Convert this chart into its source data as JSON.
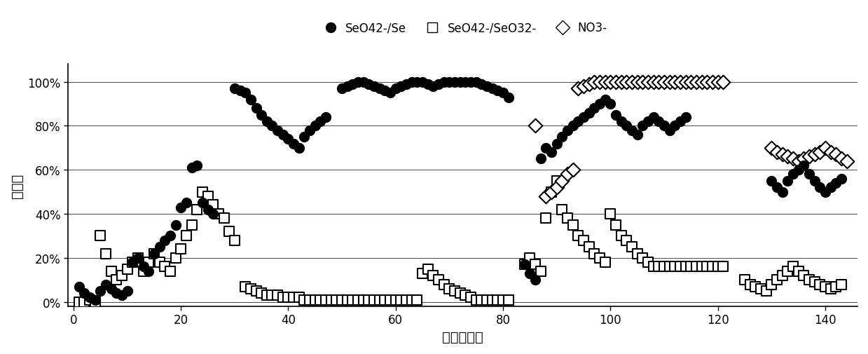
{
  "xlabel": "时间（天）",
  "ylabel": "去除率",
  "xlim": [
    -1,
    146
  ],
  "ylim": [
    -0.02,
    1.08
  ],
  "yticks": [
    0.0,
    0.2,
    0.4,
    0.6,
    0.8,
    1.0
  ],
  "ytick_labels": [
    "0%",
    "20%",
    "40%",
    "60%",
    "80%",
    "100%"
  ],
  "xticks": [
    0,
    20,
    40,
    60,
    80,
    100,
    120,
    140
  ],
  "background_color": "#ffffff",
  "seO42_Se": [
    [
      1,
      0.07
    ],
    [
      2,
      0.04
    ],
    [
      3,
      0.02
    ],
    [
      4,
      0.01
    ],
    [
      5,
      0.05
    ],
    [
      6,
      0.08
    ],
    [
      7,
      0.06
    ],
    [
      8,
      0.04
    ],
    [
      9,
      0.03
    ],
    [
      10,
      0.05
    ],
    [
      11,
      0.18
    ],
    [
      12,
      0.2
    ],
    [
      13,
      0.16
    ],
    [
      14,
      0.14
    ],
    [
      15,
      0.22
    ],
    [
      16,
      0.25
    ],
    [
      17,
      0.28
    ],
    [
      18,
      0.3
    ],
    [
      19,
      0.35
    ],
    [
      20,
      0.43
    ],
    [
      21,
      0.45
    ],
    [
      22,
      0.61
    ],
    [
      23,
      0.62
    ],
    [
      24,
      0.45
    ],
    [
      25,
      0.42
    ],
    [
      26,
      0.4
    ],
    [
      30,
      0.97
    ],
    [
      31,
      0.96
    ],
    [
      32,
      0.95
    ],
    [
      33,
      0.92
    ],
    [
      34,
      0.88
    ],
    [
      35,
      0.85
    ],
    [
      36,
      0.82
    ],
    [
      37,
      0.8
    ],
    [
      38,
      0.78
    ],
    [
      39,
      0.76
    ],
    [
      40,
      0.74
    ],
    [
      41,
      0.72
    ],
    [
      42,
      0.7
    ],
    [
      43,
      0.75
    ],
    [
      44,
      0.78
    ],
    [
      45,
      0.8
    ],
    [
      46,
      0.82
    ],
    [
      47,
      0.84
    ],
    [
      50,
      0.97
    ],
    [
      51,
      0.98
    ],
    [
      52,
      0.99
    ],
    [
      53,
      1.0
    ],
    [
      54,
      1.0
    ],
    [
      55,
      0.99
    ],
    [
      56,
      0.98
    ],
    [
      57,
      0.97
    ],
    [
      58,
      0.96
    ],
    [
      59,
      0.95
    ],
    [
      60,
      0.97
    ],
    [
      61,
      0.98
    ],
    [
      62,
      0.99
    ],
    [
      63,
      1.0
    ],
    [
      64,
      1.0
    ],
    [
      65,
      1.0
    ],
    [
      66,
      0.99
    ],
    [
      67,
      0.98
    ],
    [
      68,
      0.99
    ],
    [
      69,
      1.0
    ],
    [
      70,
      1.0
    ],
    [
      71,
      1.0
    ],
    [
      72,
      1.0
    ],
    [
      73,
      1.0
    ],
    [
      74,
      1.0
    ],
    [
      75,
      1.0
    ],
    [
      76,
      0.99
    ],
    [
      77,
      0.98
    ],
    [
      78,
      0.97
    ],
    [
      79,
      0.96
    ],
    [
      80,
      0.95
    ],
    [
      81,
      0.93
    ],
    [
      84,
      0.17
    ],
    [
      85,
      0.13
    ],
    [
      86,
      0.1
    ],
    [
      87,
      0.65
    ],
    [
      88,
      0.7
    ],
    [
      89,
      0.68
    ],
    [
      90,
      0.72
    ],
    [
      91,
      0.75
    ],
    [
      92,
      0.78
    ],
    [
      93,
      0.8
    ],
    [
      94,
      0.82
    ],
    [
      95,
      0.84
    ],
    [
      96,
      0.86
    ],
    [
      97,
      0.88
    ],
    [
      98,
      0.9
    ],
    [
      99,
      0.92
    ],
    [
      100,
      0.9
    ],
    [
      101,
      0.85
    ],
    [
      102,
      0.82
    ],
    [
      103,
      0.8
    ],
    [
      104,
      0.78
    ],
    [
      105,
      0.76
    ],
    [
      106,
      0.8
    ],
    [
      107,
      0.82
    ],
    [
      108,
      0.84
    ],
    [
      109,
      0.82
    ],
    [
      110,
      0.8
    ],
    [
      111,
      0.78
    ],
    [
      112,
      0.8
    ],
    [
      113,
      0.82
    ],
    [
      114,
      0.84
    ],
    [
      130,
      0.55
    ],
    [
      131,
      0.52
    ],
    [
      132,
      0.5
    ],
    [
      133,
      0.55
    ],
    [
      134,
      0.58
    ],
    [
      135,
      0.6
    ],
    [
      136,
      0.62
    ],
    [
      137,
      0.58
    ],
    [
      138,
      0.55
    ],
    [
      139,
      0.52
    ],
    [
      140,
      0.5
    ],
    [
      141,
      0.52
    ],
    [
      142,
      0.54
    ],
    [
      143,
      0.56
    ]
  ],
  "seO42_SeO32": [
    [
      1,
      0.0
    ],
    [
      2,
      0.0
    ],
    [
      3,
      0.01
    ],
    [
      4,
      0.0
    ],
    [
      5,
      0.3
    ],
    [
      6,
      0.22
    ],
    [
      7,
      0.14
    ],
    [
      8,
      0.1
    ],
    [
      9,
      0.12
    ],
    [
      10,
      0.15
    ],
    [
      11,
      0.18
    ],
    [
      12,
      0.2
    ],
    [
      13,
      0.14
    ],
    [
      14,
      0.18
    ],
    [
      15,
      0.22
    ],
    [
      16,
      0.18
    ],
    [
      17,
      0.16
    ],
    [
      18,
      0.14
    ],
    [
      19,
      0.2
    ],
    [
      20,
      0.24
    ],
    [
      21,
      0.3
    ],
    [
      22,
      0.35
    ],
    [
      23,
      0.42
    ],
    [
      24,
      0.5
    ],
    [
      25,
      0.48
    ],
    [
      26,
      0.44
    ],
    [
      27,
      0.4
    ],
    [
      28,
      0.38
    ],
    [
      29,
      0.32
    ],
    [
      30,
      0.28
    ],
    [
      32,
      0.07
    ],
    [
      33,
      0.06
    ],
    [
      34,
      0.05
    ],
    [
      35,
      0.04
    ],
    [
      36,
      0.03
    ],
    [
      37,
      0.03
    ],
    [
      38,
      0.03
    ],
    [
      39,
      0.02
    ],
    [
      40,
      0.02
    ],
    [
      41,
      0.02
    ],
    [
      42,
      0.02
    ],
    [
      43,
      0.01
    ],
    [
      44,
      0.01
    ],
    [
      45,
      0.01
    ],
    [
      46,
      0.01
    ],
    [
      47,
      0.01
    ],
    [
      48,
      0.01
    ],
    [
      49,
      0.01
    ],
    [
      50,
      0.01
    ],
    [
      51,
      0.01
    ],
    [
      52,
      0.01
    ],
    [
      53,
      0.01
    ],
    [
      54,
      0.01
    ],
    [
      55,
      0.01
    ],
    [
      56,
      0.01
    ],
    [
      57,
      0.01
    ],
    [
      58,
      0.01
    ],
    [
      59,
      0.01
    ],
    [
      60,
      0.01
    ],
    [
      61,
      0.01
    ],
    [
      62,
      0.01
    ],
    [
      63,
      0.01
    ],
    [
      64,
      0.01
    ],
    [
      65,
      0.13
    ],
    [
      66,
      0.15
    ],
    [
      67,
      0.12
    ],
    [
      68,
      0.1
    ],
    [
      69,
      0.08
    ],
    [
      70,
      0.06
    ],
    [
      71,
      0.05
    ],
    [
      72,
      0.04
    ],
    [
      73,
      0.03
    ],
    [
      74,
      0.02
    ],
    [
      75,
      0.01
    ],
    [
      76,
      0.01
    ],
    [
      77,
      0.01
    ],
    [
      78,
      0.01
    ],
    [
      79,
      0.01
    ],
    [
      80,
      0.01
    ],
    [
      81,
      0.01
    ],
    [
      84,
      0.17
    ],
    [
      85,
      0.2
    ],
    [
      86,
      0.17
    ],
    [
      87,
      0.14
    ],
    [
      88,
      0.38
    ],
    [
      89,
      0.5
    ],
    [
      90,
      0.55
    ],
    [
      91,
      0.42
    ],
    [
      92,
      0.38
    ],
    [
      93,
      0.35
    ],
    [
      94,
      0.3
    ],
    [
      95,
      0.28
    ],
    [
      96,
      0.25
    ],
    [
      97,
      0.22
    ],
    [
      98,
      0.2
    ],
    [
      99,
      0.18
    ],
    [
      100,
      0.4
    ],
    [
      101,
      0.35
    ],
    [
      102,
      0.3
    ],
    [
      103,
      0.28
    ],
    [
      104,
      0.25
    ],
    [
      105,
      0.22
    ],
    [
      106,
      0.2
    ],
    [
      107,
      0.18
    ],
    [
      108,
      0.16
    ],
    [
      109,
      0.16
    ],
    [
      110,
      0.16
    ],
    [
      111,
      0.16
    ],
    [
      112,
      0.16
    ],
    [
      113,
      0.16
    ],
    [
      114,
      0.16
    ],
    [
      115,
      0.16
    ],
    [
      116,
      0.16
    ],
    [
      117,
      0.16
    ],
    [
      118,
      0.16
    ],
    [
      119,
      0.16
    ],
    [
      120,
      0.16
    ],
    [
      121,
      0.16
    ],
    [
      125,
      0.1
    ],
    [
      126,
      0.08
    ],
    [
      127,
      0.07
    ],
    [
      128,
      0.06
    ],
    [
      129,
      0.05
    ],
    [
      130,
      0.08
    ],
    [
      131,
      0.1
    ],
    [
      132,
      0.12
    ],
    [
      133,
      0.14
    ],
    [
      134,
      0.16
    ],
    [
      135,
      0.14
    ],
    [
      136,
      0.12
    ],
    [
      137,
      0.1
    ],
    [
      138,
      0.09
    ],
    [
      139,
      0.08
    ],
    [
      140,
      0.07
    ],
    [
      141,
      0.06
    ],
    [
      142,
      0.07
    ],
    [
      143,
      0.08
    ]
  ],
  "NO3": [
    [
      86,
      0.8
    ],
    [
      88,
      0.48
    ],
    [
      89,
      0.5
    ],
    [
      90,
      0.52
    ],
    [
      91,
      0.55
    ],
    [
      92,
      0.58
    ],
    [
      93,
      0.6
    ],
    [
      94,
      0.97
    ],
    [
      95,
      0.98
    ],
    [
      96,
      0.99
    ],
    [
      97,
      1.0
    ],
    [
      98,
      1.0
    ],
    [
      99,
      1.0
    ],
    [
      100,
      1.0
    ],
    [
      101,
      1.0
    ],
    [
      102,
      1.0
    ],
    [
      103,
      1.0
    ],
    [
      104,
      1.0
    ],
    [
      105,
      1.0
    ],
    [
      106,
      1.0
    ],
    [
      107,
      1.0
    ],
    [
      108,
      1.0
    ],
    [
      109,
      1.0
    ],
    [
      110,
      1.0
    ],
    [
      111,
      1.0
    ],
    [
      112,
      1.0
    ],
    [
      113,
      1.0
    ],
    [
      114,
      1.0
    ],
    [
      115,
      1.0
    ],
    [
      116,
      1.0
    ],
    [
      117,
      1.0
    ],
    [
      118,
      1.0
    ],
    [
      119,
      1.0
    ],
    [
      120,
      1.0
    ],
    [
      121,
      1.0
    ],
    [
      130,
      0.7
    ],
    [
      131,
      0.68
    ],
    [
      132,
      0.67
    ],
    [
      133,
      0.66
    ],
    [
      134,
      0.65
    ],
    [
      135,
      0.64
    ],
    [
      136,
      0.65
    ],
    [
      137,
      0.66
    ],
    [
      138,
      0.67
    ],
    [
      139,
      0.68
    ],
    [
      140,
      0.7
    ],
    [
      141,
      0.68
    ],
    [
      142,
      0.67
    ],
    [
      143,
      0.65
    ],
    [
      144,
      0.64
    ]
  ]
}
